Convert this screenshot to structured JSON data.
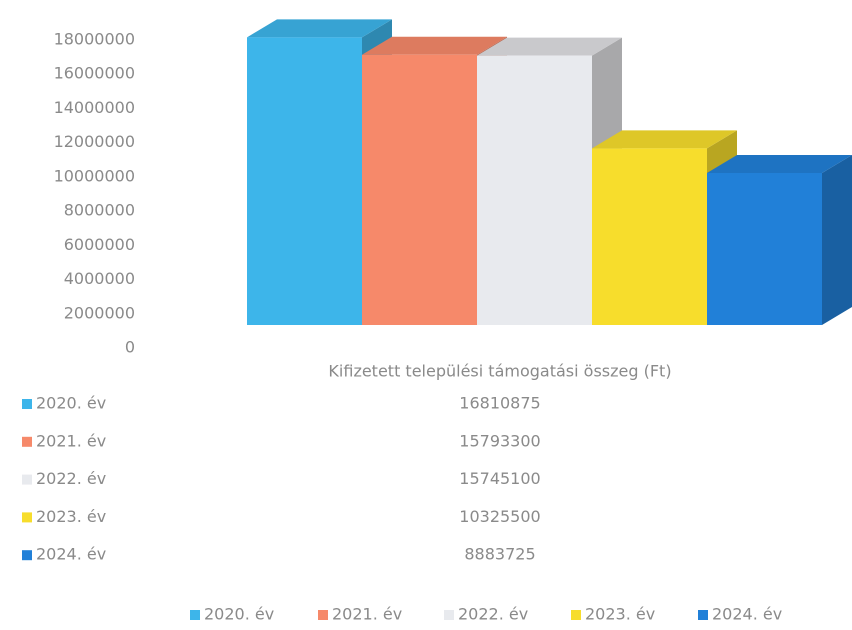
{
  "chart_data": {
    "type": "bar",
    "categories": [
      "Kifizetett települési támogatási összeg (Ft)"
    ],
    "series": [
      {
        "name": "2020. év",
        "color": "#3db5ea",
        "values": [
          16810875
        ]
      },
      {
        "name": "2021. év",
        "color": "#f6896a",
        "values": [
          15793300
        ]
      },
      {
        "name": "2022. év",
        "color": "#e8eaee",
        "values": [
          15745100
        ]
      },
      {
        "name": "2023. év",
        "color": "#f7dd2c",
        "values": [
          10325500
        ]
      },
      {
        "name": "2024. év",
        "color": "#2180d8",
        "values": [
          8883725
        ]
      }
    ],
    "ylim": [
      0,
      18000000
    ],
    "yticks": [
      0,
      2000000,
      4000000,
      6000000,
      8000000,
      10000000,
      12000000,
      14000000,
      16000000,
      18000000
    ]
  }
}
